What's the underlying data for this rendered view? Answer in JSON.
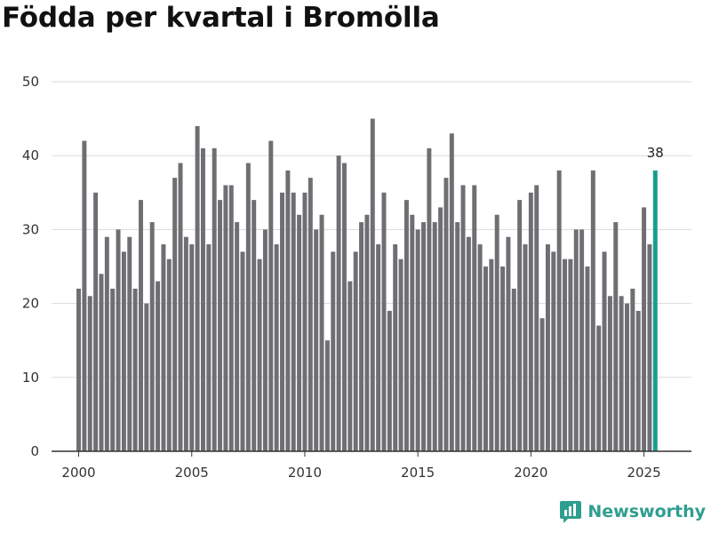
{
  "header": {
    "title": "Födda per kvartal i Bromölla"
  },
  "brand": {
    "name": "Newsworthy",
    "color": "#2f9e8f"
  },
  "colors": {
    "bar": "#6e6e73",
    "highlight": "#1a9e8f",
    "grid": "#d9d9d9",
    "axis": "#333333"
  },
  "chart_data": {
    "type": "bar",
    "title": "Födda per kvartal i Bromölla",
    "xlabel": "",
    "ylabel": "",
    "ylim": [
      0,
      50
    ],
    "yticks": [
      0,
      10,
      20,
      30,
      40,
      50
    ],
    "xticks": [
      2000,
      2005,
      2010,
      2015,
      2020,
      2025
    ],
    "xlim": [
      1998.8,
      2027.1
    ],
    "start_year": 2000,
    "periods_per_year": 4,
    "grid": true,
    "highlight_last": true,
    "highlight_label": "38",
    "values": [
      22,
      42,
      21,
      35,
      24,
      29,
      22,
      30,
      27,
      29,
      22,
      34,
      20,
      31,
      23,
      28,
      26,
      37,
      39,
      29,
      28,
      44,
      41,
      28,
      41,
      34,
      36,
      36,
      31,
      27,
      39,
      34,
      26,
      30,
      42,
      28,
      35,
      38,
      35,
      32,
      35,
      37,
      30,
      32,
      15,
      27,
      40,
      39,
      23,
      27,
      31,
      32,
      45,
      28,
      35,
      19,
      28,
      26,
      34,
      32,
      30,
      31,
      41,
      31,
      33,
      37,
      43,
      31,
      36,
      29,
      36,
      28,
      25,
      26,
      32,
      25,
      29,
      22,
      34,
      28,
      35,
      36,
      18,
      28,
      27,
      38,
      26,
      26,
      30,
      30,
      25,
      38,
      17,
      27,
      21,
      31,
      21,
      20,
      22,
      19,
      33,
      28,
      38
    ]
  }
}
